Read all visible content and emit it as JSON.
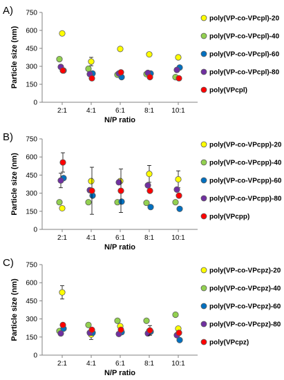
{
  "chart_data": [
    {
      "type": "scatter",
      "panel_label": "A)",
      "xlabel": "N/P ratio",
      "ylabel": "Particle size (nm)",
      "categories": [
        "2:1",
        "4:1",
        "6:1",
        "8:1",
        "10:1"
      ],
      "ylim": [
        0,
        750
      ],
      "yticks": [
        "0",
        "150",
        "300",
        "450",
        "600",
        "750"
      ],
      "grid": false,
      "legend_placement": "right",
      "error_bars": true,
      "series": [
        {
          "name": "poly(VP-co-VPcpl)-20",
          "color": "#ffff00",
          "values": [
            575,
            340,
            445,
            400,
            375
          ],
          "errors": [
            15,
            35,
            0,
            0,
            0
          ]
        },
        {
          "name": "poly(VP-co-VPcpl)-40",
          "color": "#92d050",
          "values": [
            360,
            280,
            230,
            235,
            210
          ],
          "errors": [
            0,
            0,
            0,
            0,
            0
          ]
        },
        {
          "name": "poly(VP-co-VPcpl)-60",
          "color": "#0070c0",
          "values": [
            265,
            240,
            210,
            240,
            290
          ],
          "errors": [
            0,
            0,
            0,
            0,
            0
          ]
        },
        {
          "name": "poly(VP-co-VPcpl)-80",
          "color": "#7030a0",
          "values": [
            295,
            235,
            240,
            245,
            270
          ],
          "errors": [
            0,
            0,
            0,
            0,
            0
          ]
        },
        {
          "name": "poly(VPcpl)",
          "color": "#ff0000",
          "values": [
            265,
            200,
            250,
            210,
            200
          ],
          "errors": [
            0,
            0,
            0,
            0,
            0
          ]
        }
      ]
    },
    {
      "type": "scatter",
      "panel_label": "B)",
      "xlabel": "N/P ratio",
      "ylabel": "Particle size (nm)",
      "categories": [
        "2:1",
        "4:1",
        "6:1",
        "8:1",
        "10:1"
      ],
      "ylim": [
        0,
        750
      ],
      "yticks": [
        "0",
        "150",
        "300",
        "450",
        "600",
        "750"
      ],
      "grid": false,
      "legend_placement": "right",
      "error_bars": true,
      "series": [
        {
          "name": "poly(VP-co-VPcpp)-20",
          "color": "#ffff00",
          "values": [
            175,
            400,
            400,
            460,
            415
          ],
          "errors": [
            0,
            0,
            0,
            70,
            70
          ]
        },
        {
          "name": "poly(VP-co-VPcpp)-40",
          "color": "#92d050",
          "values": [
            225,
            225,
            225,
            220,
            225
          ],
          "errors": [
            0,
            0,
            0,
            0,
            0
          ]
        },
        {
          "name": "poly(VP-co-VPcpp)-60",
          "color": "#0070c0",
          "values": [
            425,
            280,
            230,
            185,
            170
          ],
          "errors": [
            0,
            0,
            0,
            0,
            0
          ]
        },
        {
          "name": "poly(VP-co-VPcpp)-80",
          "color": "#7030a0",
          "values": [
            405,
            325,
            390,
            365,
            330
          ],
          "errors": [
            60,
            0,
            0,
            0,
            0
          ]
        },
        {
          "name": "poly(VPcpp)",
          "color": "#ff0000",
          "values": [
            555,
            320,
            320,
            320,
            280
          ],
          "errors": [
            80,
            195,
            180,
            0,
            0
          ]
        }
      ]
    },
    {
      "type": "scatter",
      "panel_label": "C)",
      "xlabel": "N/P ratio",
      "ylabel": "Particle size (nm)",
      "categories": [
        "2:1",
        "4:1",
        "6:1",
        "8:1",
        "10:1"
      ],
      "ylim": [
        0,
        750
      ],
      "yticks": [
        "0",
        "150",
        "300",
        "450",
        "600",
        "750"
      ],
      "grid": false,
      "legend_placement": "right",
      "error_bars": true,
      "series": [
        {
          "name": "poly(VP-co-VPcpz)-20",
          "color": "#ffff00",
          "values": [
            520,
            170,
            240,
            200,
            220
          ],
          "errors": [
            55,
            40,
            0,
            0,
            0
          ]
        },
        {
          "name": "poly(VP-co-VPcpz)-40",
          "color": "#92d050",
          "values": [
            200,
            250,
            285,
            285,
            335
          ],
          "errors": [
            0,
            0,
            0,
            0,
            0
          ]
        },
        {
          "name": "poly(VP-co-VPcpz)-60",
          "color": "#0070c0",
          "values": [
            220,
            185,
            190,
            195,
            125
          ],
          "errors": [
            0,
            0,
            0,
            0,
            0
          ]
        },
        {
          "name": "poly(VP-co-VPcpz)-80",
          "color": "#7030a0",
          "values": [
            180,
            185,
            175,
            180,
            165
          ],
          "errors": [
            0,
            0,
            0,
            0,
            0
          ]
        },
        {
          "name": "poly(VPcpz)",
          "color": "#ff0000",
          "values": [
            250,
            210,
            210,
            205,
            185
          ],
          "errors": [
            0,
            0,
            0,
            40,
            0
          ]
        }
      ]
    }
  ]
}
